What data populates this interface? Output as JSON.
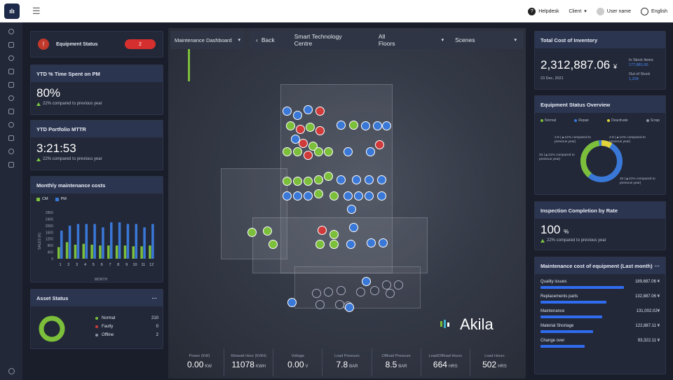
{
  "topbar": {
    "logo_text": "ılı",
    "helpdesk": "Helpdesk",
    "client": "Client",
    "user": "User name",
    "language": "English"
  },
  "equipment_status": {
    "label": "Equipment Status",
    "count": "2"
  },
  "ytd_pm": {
    "title": "YTD % Time Spent on PM",
    "value": "80%",
    "compare": "22% compared to previous year"
  },
  "ytd_mttr": {
    "title": "YTD Portfolio MTTR",
    "value": "3:21:53",
    "compare": "22% compared to previous year"
  },
  "monthly": {
    "title": "Monthly maintenance costs",
    "legend_cm": "CM",
    "legend_pm": "PM",
    "ylabel": "SALES (K)",
    "xlabel": "MONTH",
    "yticks": [
      "2800",
      "2400",
      "2000",
      "1600",
      "1200",
      "800",
      "400",
      "0"
    ]
  },
  "chart_data": {
    "type": "bar",
    "categories": [
      "1",
      "2",
      "3",
      "4",
      "5",
      "6",
      "7",
      "8",
      "9",
      "10",
      "11",
      "12"
    ],
    "ylim": [
      0,
      2800
    ],
    "xlabel": "MONTH",
    "ylabel": "SALES (K)",
    "series": [
      {
        "name": "CM",
        "values": [
          700,
          1000,
          850,
          900,
          850,
          800,
          800,
          800,
          800,
          750,
          750,
          800
        ]
      },
      {
        "name": "PM",
        "values": [
          1700,
          2000,
          2100,
          2100,
          2100,
          1900,
          2200,
          2200,
          2100,
          2100,
          1900,
          2100
        ]
      }
    ]
  },
  "asset_status": {
    "title": "Asset Status",
    "items": [
      {
        "label": "Normal",
        "value": "210",
        "color": "#7cbf3a"
      },
      {
        "label": "Faulty",
        "value": "0",
        "color": "#d03a3a"
      },
      {
        "label": "Offline",
        "value": "2",
        "color": "#8c93a6"
      }
    ]
  },
  "nav": {
    "dashboard": "Maintenance Dashboard",
    "back": "Back",
    "site": "Smart Technology Centre",
    "floors": "All Floors",
    "scenes": "Scenes"
  },
  "brand": "Akila",
  "metrics": [
    {
      "label": "Power (KW)",
      "value": "0.00",
      "unit": "KW"
    },
    {
      "label": "Kilowatt Hour (KWH)",
      "value": "11078",
      "unit": "KWH"
    },
    {
      "label": "Voltage",
      "value": "0.00",
      "unit": "V"
    },
    {
      "label": "Load Pressure",
      "value": "7.8",
      "unit": "BAR"
    },
    {
      "label": "Offload Pressure",
      "value": "8.5",
      "unit": "BAR"
    },
    {
      "label": "Load/Offload Hours",
      "value": "664",
      "unit": "HRS"
    },
    {
      "label": "Load Hours",
      "value": "502",
      "unit": "HRS"
    }
  ],
  "inventory": {
    "title": "Total Cost of Inventory",
    "value": "2,312,887.06",
    "currency": "¥",
    "date": "23 Dec, 2021",
    "in_stock_label": "In Stock Items",
    "in_stock": "177,881.00",
    "out_stock_label": "Out of Stock",
    "out_stock": "1,234"
  },
  "eq_overview": {
    "title": "Equipment Status Overview",
    "legend": [
      "Normal",
      "Repair",
      "Deactivate",
      "Scrap"
    ],
    "ann1_val": "2.8",
    "ann1_txt": "(▲12% compared to previous year)",
    "ann2_val": "2.8",
    "ann2_txt": "(▲12% compared to previous year)",
    "ann3_val": "34",
    "ann3_txt": "(▲21% compared to previous year)",
    "ann4_val": "34",
    "ann4_txt": "(▲21% compared to previous year)"
  },
  "inspection": {
    "title": "Inspection Completion by Rate",
    "value": "100",
    "unit": "%",
    "compare": "22% compared to previous year"
  },
  "maint_cost": {
    "title": "Maintenance cost of equipment (Last month)",
    "items": [
      {
        "label": "Quality issues",
        "value": "189,687.06 ¥",
        "pct": 0.95
      },
      {
        "label": "Replacements parts",
        "value": "132,887.06 ¥",
        "pct": 0.75
      },
      {
        "label": "Maintenance",
        "value": "131,002.02¥",
        "pct": 0.7
      },
      {
        "label": "Material Shortage",
        "value": "122,887.11 ¥",
        "pct": 0.6
      },
      {
        "label": "Change over",
        "value": "93,322.11 ¥",
        "pct": 0.5
      }
    ]
  }
}
